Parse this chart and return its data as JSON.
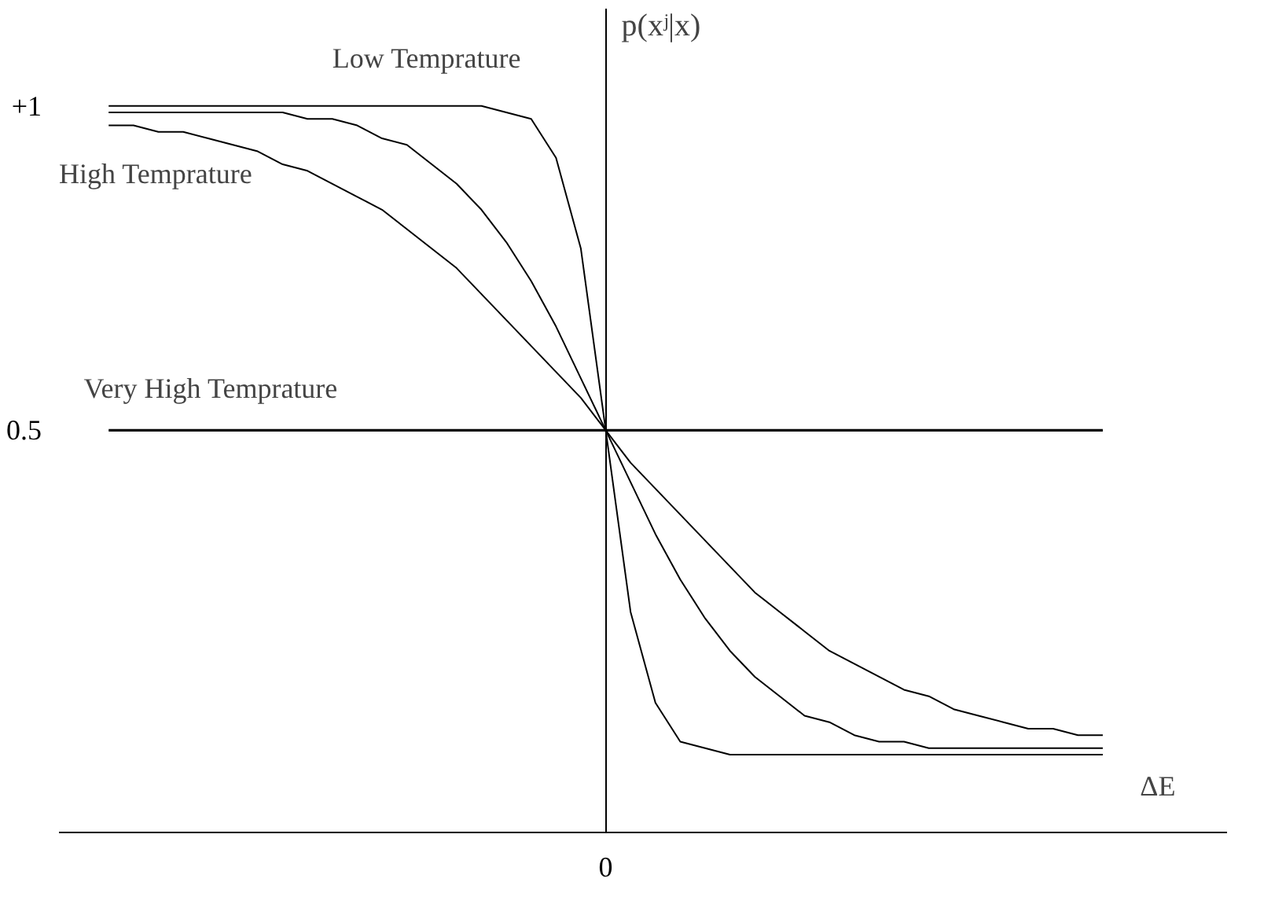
{
  "chart_data": {
    "type": "line",
    "xlabel": "ΔE",
    "ylabel": "p(xʲ|x)",
    "categories": [
      null,
      null,
      null,
      null,
      null,
      null,
      null,
      null,
      null,
      null,
      null,
      null,
      null,
      null,
      null,
      null,
      null,
      null,
      null,
      null,
      "0",
      null,
      null,
      null,
      null,
      null,
      null,
      null,
      null,
      null,
      null,
      null,
      null,
      null,
      null,
      null,
      null,
      null,
      null,
      null,
      null
    ],
    "ylim": [
      -0.12,
      1.15
    ],
    "yticks": [
      0.5,
      {
        "value": 1,
        "label": "+1"
      }
    ],
    "series": [
      {
        "name": "Low Temprature",
        "color": "#000000",
        "values": [
          1,
          1,
          1,
          1,
          1,
          1,
          1,
          1,
          1,
          1,
          1,
          1,
          1,
          1,
          1,
          1,
          0.99,
          0.98,
          0.92,
          0.78,
          0.5,
          0.22,
          0.08,
          0.02,
          0.01,
          0,
          0,
          0,
          0,
          0,
          0,
          0,
          0,
          0,
          0,
          0,
          0,
          0,
          0,
          0,
          0
        ]
      },
      {
        "color": "#000000",
        "values": [
          0.99,
          0.99,
          0.99,
          0.99,
          0.99,
          0.99,
          0.99,
          0.99,
          0.98,
          0.98,
          0.97,
          0.95,
          0.94,
          0.91,
          0.88,
          0.84,
          0.79,
          0.73,
          0.66,
          0.58,
          0.5,
          0.42,
          0.34,
          0.27,
          0.21,
          0.16,
          0.12,
          0.09,
          0.06,
          0.05,
          0.03,
          0.02,
          0.02,
          0.01,
          0.01,
          0.01,
          0.01,
          0.01,
          0.01,
          0.01,
          0.01
        ]
      },
      {
        "name": "High Temprature",
        "color": "#000000",
        "values": [
          0.97,
          0.97,
          0.96,
          0.96,
          0.95,
          0.94,
          0.93,
          0.91,
          0.9,
          0.88,
          0.86,
          0.84,
          0.81,
          0.78,
          0.75,
          0.71,
          0.67,
          0.63,
          0.59,
          0.55,
          0.5,
          0.45,
          0.41,
          0.37,
          0.33,
          0.29,
          0.25,
          0.22,
          0.19,
          0.16,
          0.14,
          0.12,
          0.1,
          0.09,
          0.07,
          0.06,
          0.05,
          0.04,
          0.04,
          0.03,
          0.03
        ]
      },
      {
        "name": "Very High Temprature",
        "color": "#000000",
        "values": [
          0.5,
          0.5,
          0.5,
          0.5,
          0.5,
          0.5,
          0.5,
          0.5,
          0.5,
          0.5,
          0.5,
          0.5,
          0.5,
          0.5,
          0.5,
          0.5,
          0.5,
          0.5,
          0.5,
          0.5,
          0.5,
          0.5,
          0.5,
          0.5,
          0.5,
          0.5,
          0.5,
          0.5,
          0.5,
          0.5,
          0.5,
          0.5,
          0.5,
          0.5,
          0.5,
          0.5,
          0.5,
          0.5,
          0.5,
          0.5,
          0.5
        ]
      }
    ]
  }
}
